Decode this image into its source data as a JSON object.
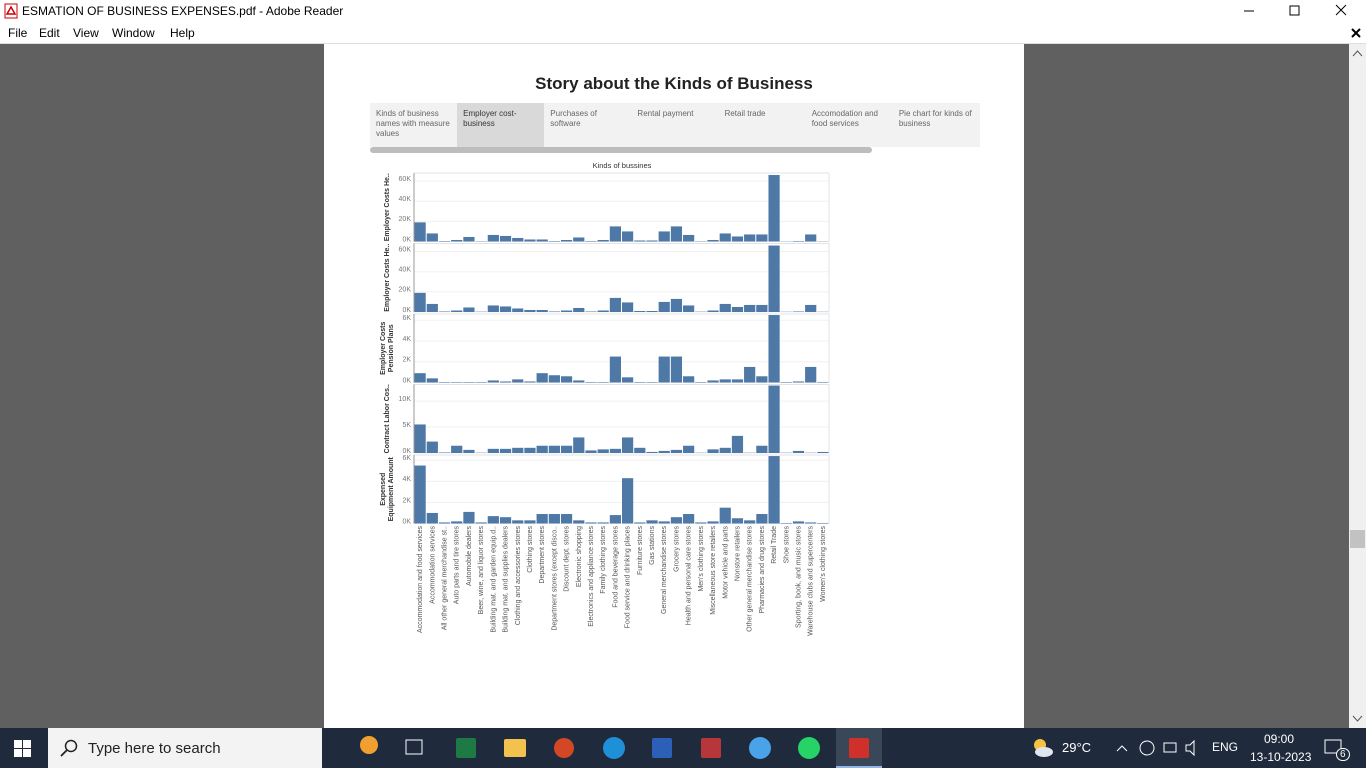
{
  "window": {
    "title": "ESMATION OF BUSINESS EXPENSES.pdf - Adobe Reader"
  },
  "menu": [
    "File",
    "Edit",
    "View",
    "Window",
    "Help"
  ],
  "story": {
    "title": "Story about the Kinds of Business",
    "tabs": [
      "Kinds of business names with measure values",
      "Employer cost-business",
      "Purchases of software",
      "Rental payment",
      "Retail trade",
      "Accomodation and food services",
      "Pie chart for kinds of business"
    ],
    "selected_tab": 1
  },
  "chart_data": {
    "type": "bar",
    "title": "Kinds of bussines",
    "color": "#4e79a7",
    "grid": true,
    "categories": [
      "Accommodation and food services",
      "Accommodation services",
      "All other general merchandise st..",
      "Auto parts and tire stores",
      "Automobile dealers",
      "Beer, wine, and liquor stores",
      "Building mat. and garden equip.d..",
      "Building mat. and supplies dealers",
      "Clothing and accessories stores",
      "Clothing stores",
      "Department stores",
      "Department stores (except disco..",
      "Discount dept. stores",
      "Electronic shopping",
      "Electronics and appliance stores",
      "Family clothing stores",
      "Food and beverage stores",
      "Food service and drinking places",
      "Furniture stores",
      "Gas stations",
      "General merchandise stores",
      "Grocery stores",
      "Health and personal care stores",
      "Men's clothing stores",
      "Miscellaneous store retailers",
      "Motor vehicle and parts",
      "Nonstore retailers",
      "Other general merchandise stores",
      "Pharmacies and drug stores",
      "Retail Trade",
      "Shoe stores",
      "Sporting, book, and music stores",
      "Warehouse clubs and supercenters",
      "Women's clothing stores"
    ],
    "panels": [
      {
        "ylabel": [
          "Employer Costs He.."
        ],
        "ylim": [
          0,
          68000
        ],
        "yticks": [
          {
            "value": 0,
            "label": "0K"
          },
          {
            "value": 20000,
            "label": "20K"
          },
          {
            "value": 40000,
            "label": "40K"
          },
          {
            "value": 60000,
            "label": "60K"
          }
        ],
        "values": [
          19000,
          8000,
          500,
          1500,
          4500,
          300,
          6500,
          5500,
          3500,
          2000,
          2000,
          500,
          1500,
          4000,
          500,
          1500,
          15000,
          10000,
          1000,
          1000,
          10000,
          15000,
          6500,
          300,
          1500,
          8000,
          5000,
          7000,
          7000,
          66000,
          200,
          500,
          7000,
          200
        ]
      },
      {
        "ylabel": [
          "Employer Costs He.."
        ],
        "ylim": [
          0,
          68000
        ],
        "yticks": [
          {
            "value": 0,
            "label": "0K"
          },
          {
            "value": 20000,
            "label": "20K"
          },
          {
            "value": 40000,
            "label": "40K"
          },
          {
            "value": 60000,
            "label": "60K"
          }
        ],
        "values": [
          19000,
          8000,
          500,
          1500,
          4500,
          300,
          6500,
          5500,
          3500,
          2000,
          2000,
          500,
          1500,
          4000,
          500,
          1500,
          14000,
          9500,
          1000,
          1000,
          10000,
          13000,
          6500,
          300,
          1500,
          8000,
          5000,
          7000,
          7000,
          66000,
          200,
          500,
          7000,
          200
        ]
      },
      {
        "ylabel": [
          "Employer Costs",
          "Pension Plans"
        ],
        "ylim": [
          0,
          6600
        ],
        "yticks": [
          {
            "value": 0,
            "label": "0K"
          },
          {
            "value": 2000,
            "label": "2K"
          },
          {
            "value": 4000,
            "label": "4K"
          },
          {
            "value": 6000,
            "label": "6K"
          }
        ],
        "values": [
          900,
          400,
          50,
          50,
          50,
          50,
          200,
          100,
          300,
          100,
          900,
          700,
          600,
          200,
          50,
          50,
          2500,
          500,
          50,
          50,
          2500,
          2500,
          600,
          50,
          200,
          300,
          300,
          1500,
          600,
          6500,
          50,
          100,
          1500,
          50
        ]
      },
      {
        "ylabel": [
          "Contract Labor Cos.."
        ],
        "ylim": [
          0,
          13200
        ],
        "yticks": [
          {
            "value": 0,
            "label": "0K"
          },
          {
            "value": 5000,
            "label": "5K"
          },
          {
            "value": 10000,
            "label": "10K"
          }
        ],
        "values": [
          5500,
          2200,
          100,
          1400,
          600,
          50,
          800,
          800,
          1000,
          1000,
          1400,
          1400,
          1400,
          3000,
          500,
          700,
          800,
          3000,
          1000,
          200,
          400,
          600,
          1400,
          50,
          700,
          1000,
          3300,
          50,
          1400,
          13000,
          50,
          400,
          50,
          200
        ]
      },
      {
        "ylabel": [
          "Expensed",
          "Equipment Amount"
        ],
        "ylim": [
          0,
          6500
        ],
        "yticks": [
          {
            "value": 0,
            "label": "0K"
          },
          {
            "value": 2000,
            "label": "2K"
          },
          {
            "value": 4000,
            "label": "4K"
          },
          {
            "value": 6000,
            "label": "6K"
          }
        ],
        "values": [
          5500,
          1000,
          100,
          200,
          1100,
          100,
          700,
          600,
          300,
          300,
          900,
          900,
          900,
          300,
          100,
          100,
          800,
          4300,
          100,
          300,
          200,
          600,
          900,
          100,
          200,
          1500,
          500,
          300,
          900,
          6400,
          50,
          200,
          100,
          50
        ]
      }
    ]
  },
  "taskbar": {
    "search_placeholder": "Type here to search",
    "weather": "29°C",
    "language": "ENG",
    "time": "09:00",
    "date": "13-10-2023",
    "notifications": "6"
  }
}
